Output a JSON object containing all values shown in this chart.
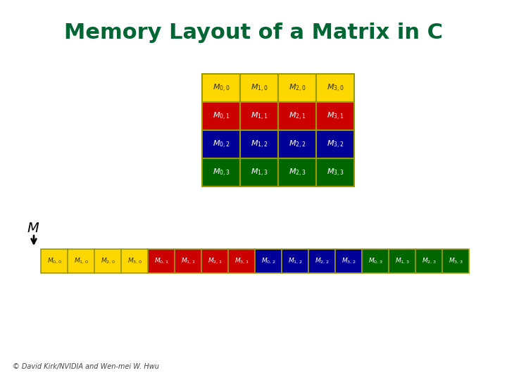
{
  "title": "Memory Layout of a Matrix in C",
  "title_color": "#006633",
  "title_fontsize": 22,
  "bg_color": "#ffffff",
  "row_colors": [
    "#FFD700",
    "#CC0000",
    "#000099",
    "#006600"
  ],
  "border_color": "#999900",
  "matrix_labels": [
    [
      "M_{0,0}",
      "M_{1,0}",
      "M_{2,0}",
      "M_{3,0}"
    ],
    [
      "M_{0,1}",
      "M_{1,1}",
      "M_{2,1}",
      "M_{3,1}"
    ],
    [
      "M_{0,2}",
      "M_{1,2}",
      "M_{2,2}",
      "M_{3,2}"
    ],
    [
      "M_{0,3}",
      "M_{1,3}",
      "M_{2,3}",
      "M_{3,3}"
    ]
  ],
  "flat_labels": [
    "M_{0,0}",
    "M_{1,0}",
    "M_{2,0}",
    "M_{3,0}",
    "M_{0,1}",
    "M_{1,1}",
    "M_{2,1}",
    "M_{3,1}",
    "M_{0,2}",
    "M_{1,2}",
    "M_{2,2}",
    "M_{3,2}",
    "M_{0,3}",
    "M_{1,3}",
    "M_{2,3}",
    "M_{3,3}"
  ],
  "flat_colors": [
    "#FFD700",
    "#FFD700",
    "#FFD700",
    "#FFD700",
    "#CC0000",
    "#CC0000",
    "#CC0000",
    "#CC0000",
    "#000099",
    "#000099",
    "#000099",
    "#000099",
    "#006600",
    "#006600",
    "#006600",
    "#006600"
  ],
  "copyright": "© David Kirk/NVIDIA and Wen-mei W. Hwu"
}
